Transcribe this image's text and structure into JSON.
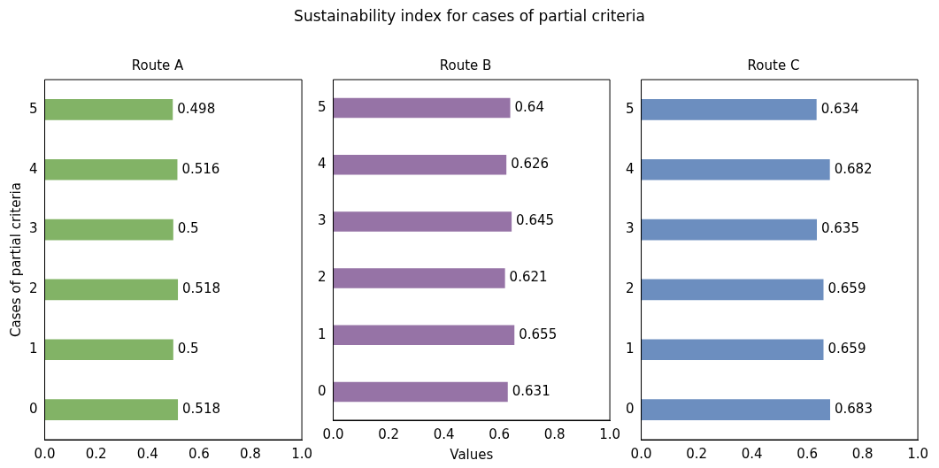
{
  "chart_data": [
    {
      "type": "bar",
      "orientation": "horizontal",
      "title": "Route A",
      "ylabel": "Cases of partial criteria",
      "categories": [
        "5",
        "4",
        "3",
        "2",
        "1",
        "0"
      ],
      "values": [
        0.498,
        0.516,
        0.5,
        0.518,
        0.5,
        0.518
      ],
      "color": "#82b366",
      "data_labels": true,
      "grid": false,
      "legend": false,
      "xlim": [
        0,
        1
      ],
      "xticks": [
        {
          "value": 0,
          "label": "0.0"
        },
        {
          "value": 0.2,
          "label": "0.2"
        },
        {
          "value": 0.4,
          "label": "0.4"
        },
        {
          "value": 0.6,
          "label": "0.6"
        },
        {
          "value": 0.8,
          "label": "0.8"
        },
        {
          "value": 1,
          "label": "1.0"
        }
      ],
      "annotations": [
        "Sustainability index for cases of partial criteria"
      ]
    },
    {
      "type": "bar",
      "orientation": "horizontal",
      "title": "Route B",
      "xlabel": "Values",
      "categories": [
        "5",
        "4",
        "3",
        "2",
        "1",
        "0"
      ],
      "values": [
        0.64,
        0.626,
        0.645,
        0.621,
        0.655,
        0.631
      ],
      "color": "#9673a6",
      "data_labels": true,
      "grid": false,
      "legend": false,
      "xlim": [
        0,
        1
      ],
      "xticks": [
        {
          "value": 0,
          "label": "0.0"
        },
        {
          "value": 0.2,
          "label": "0.2"
        },
        {
          "value": 0.4,
          "label": "0.4"
        },
        {
          "value": 0.6,
          "label": "0.6"
        },
        {
          "value": 0.8,
          "label": "0.8"
        },
        {
          "value": 1,
          "label": "1.0"
        }
      ]
    },
    {
      "type": "bar",
      "orientation": "horizontal",
      "title": "Route C",
      "categories": [
        "5",
        "4",
        "3",
        "2",
        "1",
        "0"
      ],
      "values": [
        0.634,
        0.682,
        0.635,
        0.659,
        0.659,
        0.683
      ],
      "color": "#6c8ebf",
      "data_labels": true,
      "grid": false,
      "legend": false,
      "xlim": [
        0,
        1
      ],
      "xticks": [
        {
          "value": 0,
          "label": "0.0"
        },
        {
          "value": 0.2,
          "label": "0.2"
        },
        {
          "value": 0.4,
          "label": "0.4"
        },
        {
          "value": 0.6,
          "label": "0.6"
        },
        {
          "value": 0.8,
          "label": "0.8"
        },
        {
          "value": 1,
          "label": "1.0"
        }
      ]
    }
  ]
}
